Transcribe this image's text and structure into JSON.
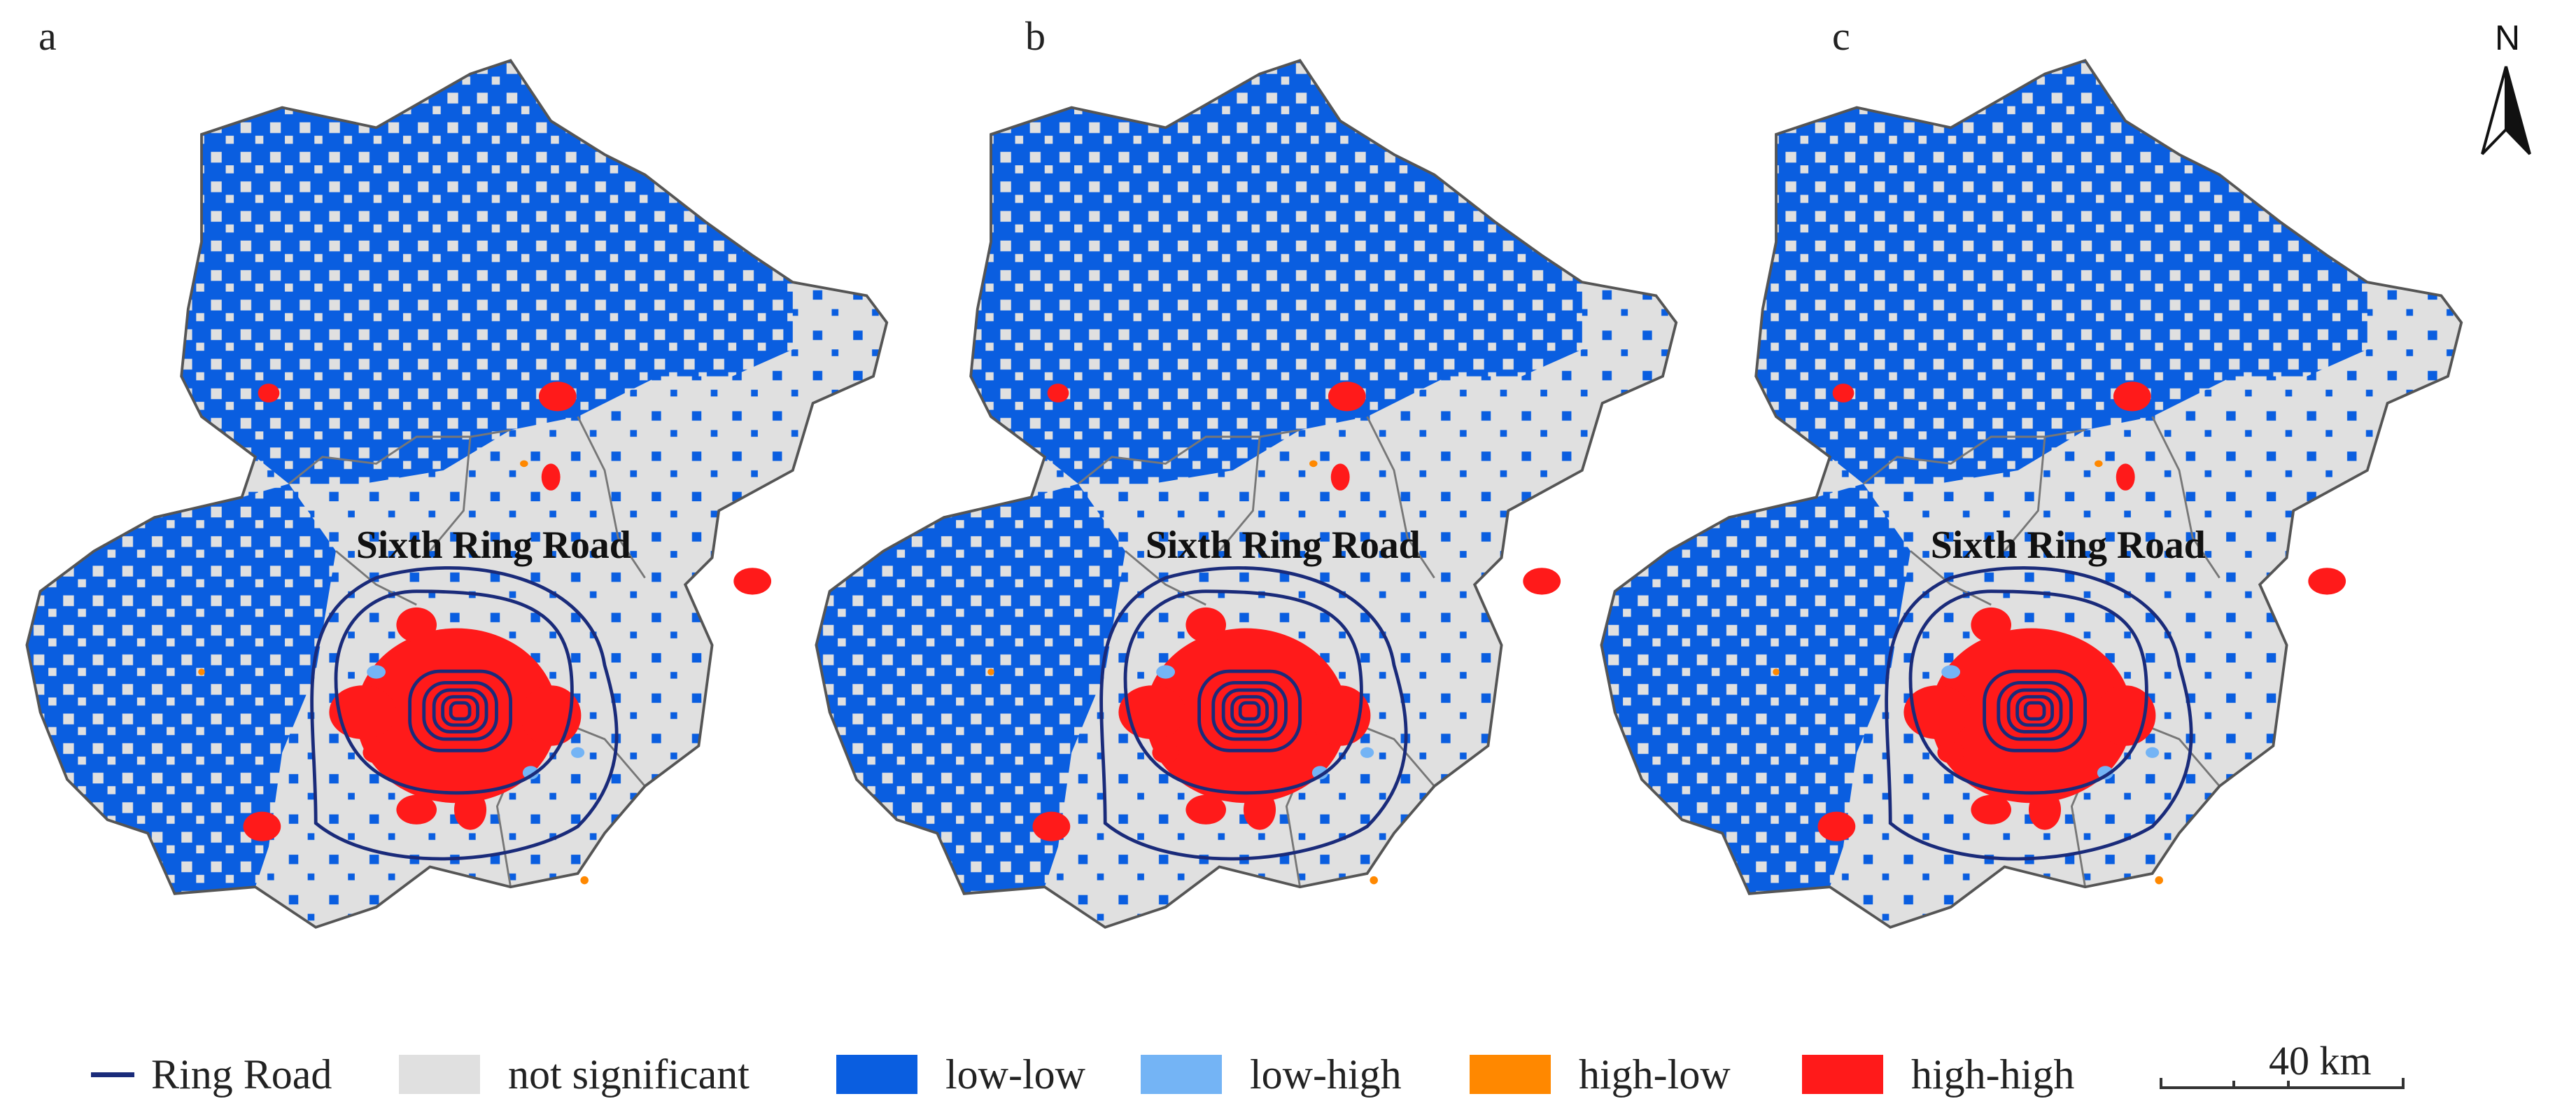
{
  "panels": [
    {
      "letter": "a",
      "ring_label": "Sixth Ring Road"
    },
    {
      "letter": "b",
      "ring_label": "Sixth Ring Road"
    },
    {
      "letter": "c",
      "ring_label": "Sixth Ring Road"
    }
  ],
  "legend": {
    "ring_road": {
      "label": "Ring Road",
      "color": "#1a2b7a"
    },
    "items": [
      {
        "label": "not significant",
        "color": "#e0e0e0"
      },
      {
        "label": "low-low",
        "color": "#0a5ee0"
      },
      {
        "label": "low-high",
        "color": "#74b4f5"
      },
      {
        "label": "high-low",
        "color": "#ff8800"
      },
      {
        "label": "high-high",
        "color": "#ff1a1a"
      }
    ]
  },
  "scalebar": {
    "label": "40 km"
  },
  "north_arrow": {
    "label": "N"
  }
}
